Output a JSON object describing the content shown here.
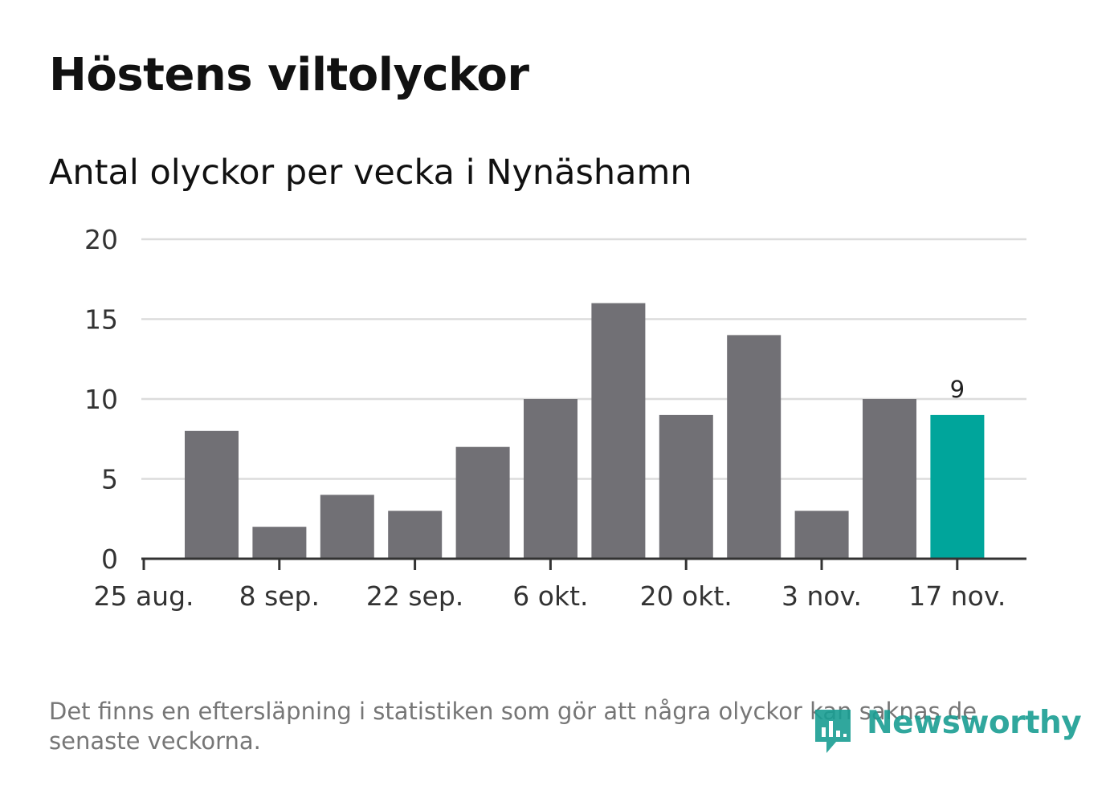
{
  "title": "Höstens viltolyckor",
  "subtitle": "Antal olyckor per vecka i Nynäshamn",
  "footnote": "Det finns en eftersläpning i statistiken som gör att några olyckor kan saknas de senaste veckorna.",
  "logo": {
    "text": "Newsworthy",
    "icon": "newsworthy-bar-chart-icon"
  },
  "colors": {
    "bar": "#717075",
    "highlight": "#00a59b",
    "grid": "#dcdcdc",
    "axis": "#333333",
    "logo": "#1a9e93"
  },
  "chart_data": {
    "type": "bar",
    "title": "Antal olyckor per vecka i Nynäshamn",
    "xlabel": "",
    "ylabel": "",
    "ylim": [
      0,
      20
    ],
    "yticks": [
      0,
      5,
      10,
      15,
      20
    ],
    "grid": true,
    "x_tick_labels": [
      "25 aug.",
      "8 sep.",
      "22 sep.",
      "6 okt.",
      "20 okt.",
      "3 nov.",
      "17 nov."
    ],
    "series": [
      {
        "values": [
          8,
          2,
          4,
          3,
          7,
          10,
          16,
          9,
          14,
          3,
          10,
          9
        ]
      }
    ],
    "highlight_index": 11,
    "data_labels": [
      {
        "index": 11,
        "text": "9"
      }
    ]
  }
}
